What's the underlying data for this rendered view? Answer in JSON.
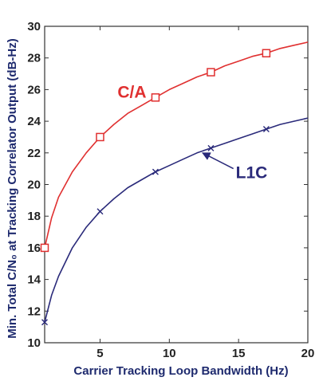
{
  "chart_data": {
    "type": "line",
    "title": "",
    "xlabel": "Carrier Tracking Loop Bandwidth (Hz)",
    "ylabel": "Min. Total C/N₀ at Tracking Correlator Output (dB-Hz)",
    "xlim": [
      1,
      20
    ],
    "ylim": [
      10,
      30
    ],
    "xticks": [
      5,
      10,
      15,
      20
    ],
    "yticks": [
      10,
      12,
      14,
      16,
      18,
      20,
      22,
      24,
      26,
      28,
      30
    ],
    "grid": false,
    "legend": "none",
    "series": [
      {
        "name": "C/A",
        "color": "#e03030",
        "marker": "square",
        "x": [
          1,
          1.5,
          2,
          3,
          4,
          5,
          6,
          7,
          8,
          9,
          10,
          11,
          12,
          13,
          14,
          15,
          16,
          17,
          18,
          19,
          20
        ],
        "y": [
          16.0,
          17.9,
          19.2,
          20.8,
          22.0,
          23.0,
          23.8,
          24.5,
          25.0,
          25.5,
          26.0,
          26.4,
          26.8,
          27.1,
          27.5,
          27.8,
          28.1,
          28.3,
          28.6,
          28.8,
          29.0
        ],
        "marker_x": [
          1,
          5,
          9,
          13,
          17
        ],
        "marker_y": [
          16.0,
          23.0,
          25.5,
          27.1,
          28.3
        ]
      },
      {
        "name": "L1C",
        "color": "#2a2a7a",
        "marker": "x",
        "x": [
          1,
          1.5,
          2,
          3,
          4,
          5,
          6,
          7,
          8,
          9,
          10,
          11,
          12,
          13,
          14,
          15,
          16,
          17,
          18,
          19,
          20
        ],
        "y": [
          11.3,
          13.0,
          14.2,
          16.0,
          17.3,
          18.3,
          19.1,
          19.8,
          20.3,
          20.8,
          21.2,
          21.6,
          22.0,
          22.3,
          22.6,
          22.9,
          23.2,
          23.5,
          23.8,
          24.0,
          24.2
        ],
        "marker_x": [
          1,
          5,
          9,
          13,
          17
        ],
        "marker_y": [
          11.3,
          18.3,
          20.8,
          22.3,
          23.5
        ]
      }
    ],
    "annotations": [
      {
        "text": "C/A",
        "color": "#e03030",
        "x": 7.3,
        "y": 25.5
      },
      {
        "text": "L1C",
        "color": "#2a2a7a",
        "x": 14.8,
        "y": 20.4,
        "arrow_to": [
          12.4,
          22.0
        ]
      }
    ]
  }
}
